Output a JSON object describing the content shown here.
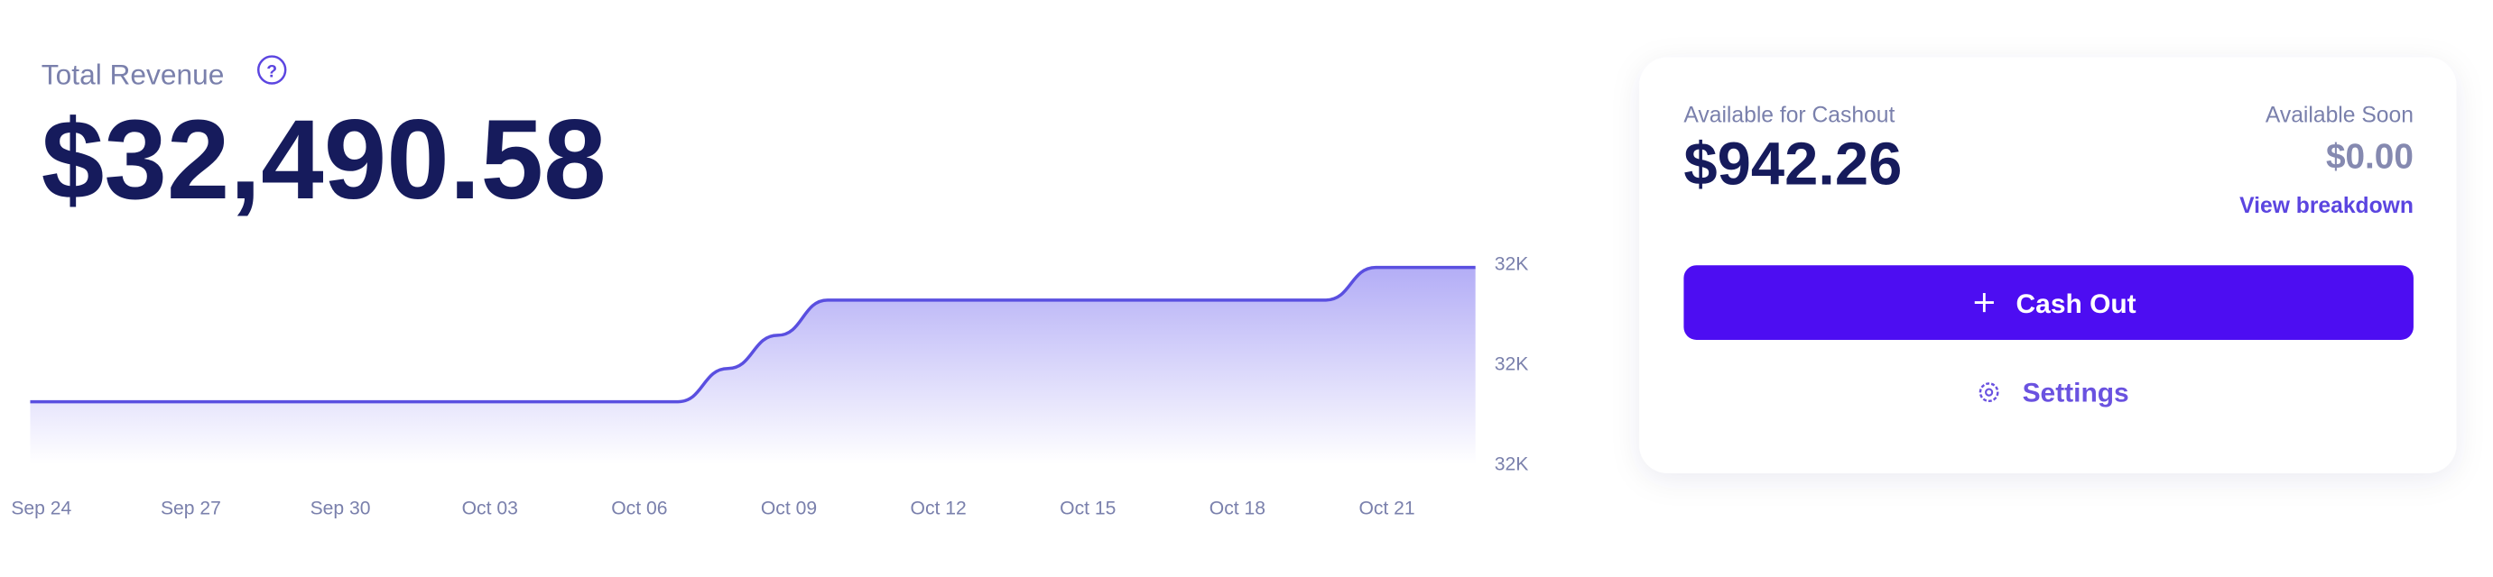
{
  "header": {
    "title": "Total Revenue",
    "help": "?",
    "value": "$32,490.58"
  },
  "chart_data": {
    "type": "area",
    "color": "#5a4fe0",
    "x": [
      "Sep 24",
      null,
      null,
      "Sep 27",
      null,
      null,
      "Sep 30",
      null,
      null,
      "Oct 03",
      null,
      null,
      "Oct 06",
      null,
      null,
      "Oct 09",
      null,
      null,
      "Oct 12",
      null,
      null,
      "Oct 15",
      null,
      null,
      "Oct 18",
      null,
      null,
      "Oct 21",
      null,
      null
    ],
    "values": [
      32155,
      32155,
      32155,
      32155,
      32155,
      32155,
      32155,
      32155,
      32155,
      32155,
      32155,
      32155,
      32155,
      32155,
      32238,
      32321,
      32409,
      32409,
      32409,
      32409,
      32409,
      32409,
      32409,
      32409,
      32409,
      32409,
      32409,
      32490.58,
      32490.58,
      32490.58
    ],
    "ylim": [
      32000,
      32500
    ],
    "yticks": [
      {
        "value": 32000,
        "label": "32K"
      },
      {
        "value": 32250,
        "label": "32K"
      },
      {
        "value": 32500,
        "label": "32K"
      }
    ]
  },
  "cashout": {
    "available_label": "Available for Cashout",
    "available_value": "$942.26",
    "soon_label": "Available Soon",
    "soon_value": "$0.00",
    "breakdown_link": "View breakdown",
    "button": "Cash Out",
    "settings": "Settings"
  }
}
